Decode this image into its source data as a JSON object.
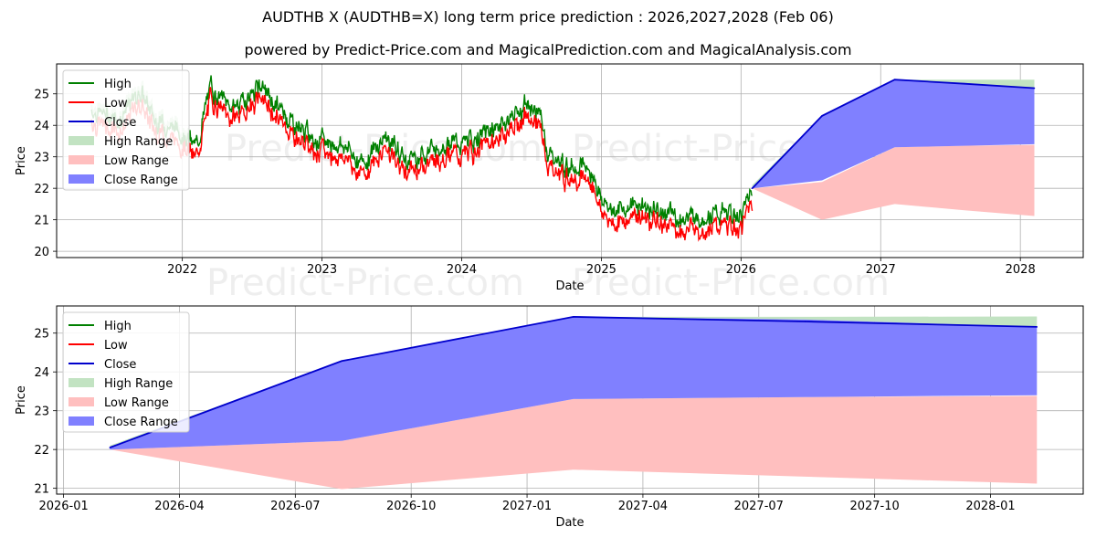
{
  "title": "AUDTHB X (AUDTHB=X) long term price prediction : 2026,2027,2028 (Feb 06)",
  "subtitle": "powered by Predict-Price.com and MagicalPrediction.com and MagicalAnalysis.com",
  "watermark": "Predict-Price.com",
  "colors": {
    "high": "#008000",
    "low": "#ff0000",
    "close": "#0000cc",
    "high_range": "#c2e3c2",
    "low_range": "#ffbfbf",
    "close_range": "#8080ff",
    "grid": "#b0b0b0",
    "watermark": "#eeeeee"
  },
  "chart_data": [
    {
      "type": "line",
      "name": "history-and-forecast",
      "xlabel": "Date",
      "ylabel": "Price",
      "xlim": [
        2021.1,
        2028.45
      ],
      "ylim": [
        19.8,
        25.95
      ],
      "xticks": [
        2022,
        2023,
        2024,
        2025,
        2026,
        2027,
        2028
      ],
      "xtick_labels": [
        "2022",
        "2023",
        "2024",
        "2025",
        "2026",
        "2027",
        "2028"
      ],
      "yticks": [
        20,
        21,
        22,
        23,
        24,
        25
      ],
      "ytick_labels": [
        "20",
        "21",
        "22",
        "23",
        "24",
        "25"
      ],
      "legend": [
        "High",
        "Low",
        "Close",
        "High Range",
        "Low Range",
        "Close Range"
      ],
      "legend_position": "top-left",
      "history_anchors": {
        "x": [
          2021.35,
          2021.55,
          2021.7,
          2021.8,
          2021.9,
          2022.0,
          2022.1,
          2022.2,
          2022.35,
          2022.45,
          2022.55,
          2022.7,
          2022.85,
          2023.0,
          2023.15,
          2023.3,
          2023.45,
          2023.6,
          2023.75,
          2023.9,
          2024.0,
          2024.15,
          2024.3,
          2024.45,
          2024.55,
          2024.62,
          2024.75,
          2024.85,
          2024.95,
          2025.0,
          2025.1,
          2025.25,
          2025.4,
          2025.55,
          2025.7,
          2025.85,
          2026.0,
          2026.08
        ],
        "close": [
          24.3,
          24.0,
          24.9,
          24.0,
          23.8,
          23.6,
          23.1,
          25.0,
          24.4,
          24.6,
          25.1,
          24.3,
          23.7,
          23.3,
          23.2,
          22.6,
          23.5,
          22.7,
          23.0,
          23.3,
          23.2,
          23.5,
          23.9,
          24.4,
          24.3,
          22.9,
          22.5,
          22.6,
          22.2,
          21.4,
          21.1,
          21.3,
          21.1,
          20.9,
          20.9,
          21.0,
          20.9,
          21.9
        ]
      },
      "forecast": {
        "x": [
          2026.08,
          2026.58,
          2027.1,
          2027.6,
          2028.1
        ],
        "close": [
          22.0,
          24.3,
          25.45,
          25.32,
          25.18
        ],
        "close_range_low": [
          22.0,
          22.25,
          23.3,
          23.35,
          23.4
        ],
        "close_range_high": [
          22.0,
          24.3,
          25.45,
          25.35,
          25.18
        ],
        "high_range_top": [
          22.1,
          24.3,
          25.45,
          25.45,
          25.45
        ],
        "low_range_low": [
          22.0,
          21.0,
          21.5,
          21.3,
          21.12
        ],
        "low_range_high": [
          22.0,
          22.2,
          23.3,
          23.35,
          23.38
        ]
      }
    },
    {
      "type": "line",
      "name": "forecast-detail",
      "xlabel": "Date",
      "ylabel": "Price",
      "xlim": [
        2025.985,
        2028.2
      ],
      "ylim": [
        20.85,
        25.7
      ],
      "xticks": [
        2026.0,
        2026.25,
        2026.5,
        2026.75,
        2027.0,
        2027.25,
        2027.5,
        2027.75,
        2028.0
      ],
      "xtick_labels": [
        "2026-01",
        "2026-04",
        "2026-07",
        "2026-10",
        "2027-01",
        "2027-04",
        "2027-07",
        "2027-10",
        "2028-01"
      ],
      "yticks": [
        21,
        22,
        23,
        24,
        25
      ],
      "ytick_labels": [
        "21",
        "22",
        "23",
        "24",
        "25"
      ],
      "legend": [
        "High",
        "Low",
        "Close",
        "High Range",
        "Low Range",
        "Close Range"
      ],
      "legend_position": "top-left",
      "forecast": {
        "x": [
          2026.1,
          2026.6,
          2027.1,
          2027.6,
          2028.1
        ],
        "close": [
          22.05,
          24.28,
          25.42,
          25.3,
          25.16
        ],
        "close_range_low": [
          22.0,
          22.22,
          23.3,
          23.35,
          23.4
        ],
        "close_range_high": [
          22.05,
          24.28,
          25.42,
          25.35,
          25.16
        ],
        "high_range_top": [
          22.1,
          24.28,
          25.42,
          25.42,
          25.43
        ],
        "low_range_low": [
          22.0,
          20.98,
          21.48,
          21.3,
          21.12
        ],
        "low_range_high": [
          22.0,
          22.22,
          23.3,
          23.35,
          23.38
        ]
      }
    }
  ]
}
